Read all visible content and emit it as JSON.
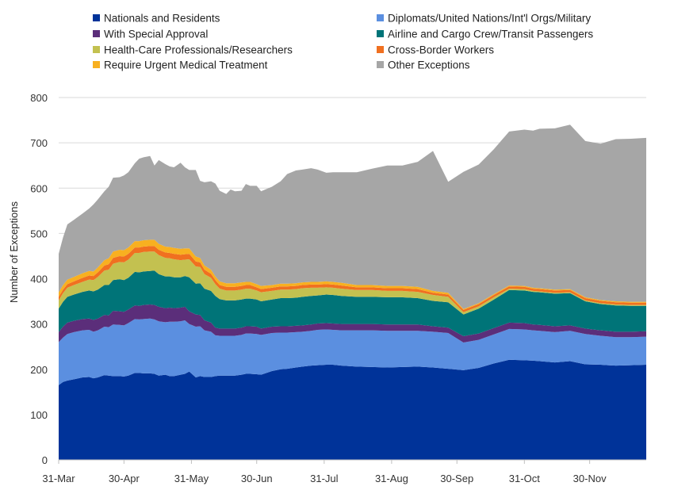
{
  "chart_data": {
    "type": "area",
    "stacked": true,
    "title": "",
    "xlabel": "",
    "ylabel": "Number of Exceptions",
    "ylim": [
      0,
      800
    ],
    "yticks": [
      0,
      100,
      200,
      300,
      400,
      500,
      600,
      700,
      800
    ],
    "x_start": "31-Mar",
    "x_tick_labels": [
      "31-Mar",
      "30-Apr",
      "31-May",
      "30-Jun",
      "31-Jul",
      "31-Aug",
      "30-Sep",
      "31-Oct",
      "30-Nov"
    ],
    "x_tick_days": [
      0,
      30,
      61,
      91,
      122,
      153,
      183,
      214,
      244
    ],
    "x_days": [
      0,
      2,
      4,
      7,
      11,
      14,
      16,
      18,
      21,
      23,
      25,
      28,
      30,
      32,
      35,
      37,
      39,
      42,
      44,
      46,
      49,
      51,
      53,
      56,
      58,
      60,
      63,
      65,
      67,
      70,
      72,
      74,
      77,
      79,
      81,
      84,
      86,
      88,
      91,
      93,
      98,
      102,
      105,
      109,
      112,
      116,
      119,
      123,
      126,
      130,
      137,
      144,
      151,
      158,
      165,
      172,
      179,
      186,
      193,
      200,
      207,
      214,
      218,
      221,
      228,
      235,
      242,
      249,
      256,
      263,
      270
    ],
    "grid": true,
    "legend_position": "top",
    "series": [
      {
        "name": "Nationals and Residents",
        "color": "#003399",
        "values": [
          165,
          172,
          175,
          178,
          182,
          183,
          180,
          182,
          187,
          186,
          185,
          185,
          184,
          186,
          192,
          192,
          191,
          191,
          190,
          186,
          188,
          185,
          185,
          188,
          190,
          195,
          182,
          185,
          183,
          183,
          185,
          186,
          186,
          186,
          186,
          188,
          190,
          190,
          189,
          188,
          196,
          200,
          201,
          204,
          206,
          208,
          209,
          210,
          210,
          208,
          206,
          205,
          204,
          205,
          206,
          204,
          201,
          198,
          203,
          213,
          221,
          220,
          219,
          218,
          215,
          218,
          211,
          210,
          208,
          209,
          210
        ]
      },
      {
        "name": "Diplomats/United Nations/Int'l Orgs/Military",
        "color": "#5b8fe0",
        "values": [
          95,
          98,
          103,
          104,
          104,
          104,
          103,
          104,
          107,
          107,
          114,
          113,
          113,
          116,
          119,
          118,
          120,
          121,
          120,
          120,
          116,
          120,
          120,
          118,
          118,
          105,
          112,
          110,
          103,
          100,
          90,
          88,
          88,
          88,
          88,
          88,
          89,
          89,
          89,
          88,
          84,
          81,
          80,
          78,
          77,
          77,
          78,
          78,
          77,
          78,
          80,
          81,
          81,
          80,
          79,
          79,
          79,
          61,
          62,
          64,
          68,
          68,
          67,
          67,
          67,
          67,
          67,
          64,
          63,
          62,
          62
        ]
      },
      {
        "name": "With Special Approval",
        "color": "#5b2e7a",
        "values": [
          22,
          24,
          25,
          25,
          25,
          25,
          26,
          26,
          26,
          26,
          30,
          30,
          30,
          30,
          30,
          30,
          31,
          31,
          32,
          32,
          31,
          31,
          30,
          30,
          30,
          28,
          27,
          25,
          22,
          20,
          17,
          16,
          16,
          16,
          16,
          16,
          16,
          16,
          16,
          14,
          14,
          14,
          14,
          14,
          14,
          14,
          14,
          14,
          14,
          14,
          14,
          14,
          14,
          14,
          14,
          12,
          12,
          14,
          14,
          14,
          14,
          14,
          13,
          13,
          13,
          12,
          12,
          12,
          12,
          12,
          12
        ]
      },
      {
        "name": "Airline and Cargo Crew/Transit Passengers",
        "color": "#007478",
        "values": [
          52,
          55,
          57,
          58,
          60,
          62,
          63,
          64,
          66,
          67,
          68,
          71,
          70,
          70,
          74,
          74,
          74,
          74,
          76,
          72,
          70,
          69,
          68,
          67,
          68,
          75,
          68,
          70,
          70,
          70,
          70,
          65,
          62,
          62,
          62,
          62,
          61,
          61,
          60,
          60,
          60,
          62,
          62,
          62,
          63,
          63,
          62,
          63,
          63,
          62,
          60,
          60,
          60,
          60,
          58,
          56,
          56,
          48,
          55,
          63,
          72,
          72,
          72,
          72,
          72,
          71,
          60,
          58,
          58,
          57,
          56
        ]
      },
      {
        "name": "Health-Care Professionals/Researchers",
        "color": "#c3c150",
        "values": [
          18,
          19,
          20,
          21,
          22,
          24,
          25,
          28,
          32,
          34,
          36,
          38,
          39,
          40,
          42,
          43,
          43,
          43,
          42,
          42,
          41,
          40,
          40,
          38,
          36,
          40,
          38,
          36,
          32,
          29,
          26,
          23,
          22,
          22,
          22,
          22,
          22,
          22,
          20,
          20,
          19,
          19,
          19,
          19,
          19,
          18,
          17,
          16,
          16,
          16,
          15,
          15,
          14,
          14,
          14,
          13,
          12,
          5,
          5,
          5,
          3,
          3,
          2,
          2,
          2,
          2,
          2,
          2,
          2,
          2,
          2
        ]
      },
      {
        "name": "Cross-Border Workers",
        "color": "#f07020",
        "values": [
          8,
          8,
          8,
          8,
          9,
          9,
          9,
          10,
          11,
          12,
          13,
          13,
          13,
          13,
          12,
          12,
          12,
          12,
          12,
          12,
          12,
          12,
          12,
          12,
          12,
          12,
          11,
          10,
          10,
          9,
          9,
          8,
          8,
          8,
          8,
          8,
          8,
          8,
          7,
          7,
          7,
          7,
          7,
          7,
          7,
          7,
          7,
          7,
          7,
          7,
          6,
          6,
          6,
          6,
          6,
          5,
          5,
          5,
          5,
          5,
          5,
          5,
          5,
          5,
          5,
          5,
          5,
          5,
          5,
          5,
          5
        ]
      },
      {
        "name": "Require Urgent Medical Treatment",
        "color": "#f8b020",
        "values": [
          10,
          10,
          10,
          10,
          10,
          10,
          10,
          11,
          12,
          13,
          14,
          14,
          14,
          14,
          14,
          14,
          14,
          14,
          14,
          13,
          13,
          13,
          13,
          13,
          13,
          12,
          11,
          10,
          9,
          9,
          8,
          8,
          8,
          8,
          8,
          8,
          7,
          7,
          7,
          7,
          6,
          6,
          6,
          6,
          6,
          6,
          6,
          6,
          6,
          6,
          5,
          5,
          5,
          5,
          5,
          4,
          4,
          2,
          2,
          2,
          2,
          2,
          2,
          2,
          2,
          2,
          2,
          2,
          2,
          2,
          2
        ]
      },
      {
        "name": "Other Exceptions",
        "color": "#a6a6a6",
        "values": [
          85,
          105,
          122,
          126,
          132,
          138,
          148,
          150,
          152,
          158,
          163,
          160,
          165,
          166,
          172,
          182,
          183,
          185,
          164,
          185,
          182,
          178,
          178,
          190,
          179,
          173,
          191,
          170,
          184,
          195,
          205,
          200,
          197,
          207,
          203,
          202,
          216,
          212,
          217,
          209,
          217,
          226,
          242,
          249,
          249,
          251,
          248,
          240,
          242,
          244,
          249,
          257,
          266,
          266,
          276,
          309,
          245,
          303,
          306,
          320,
          340,
          345,
          347,
          352,
          356,
          363,
          345,
          345,
          358,
          360,
          362
        ]
      }
    ]
  }
}
